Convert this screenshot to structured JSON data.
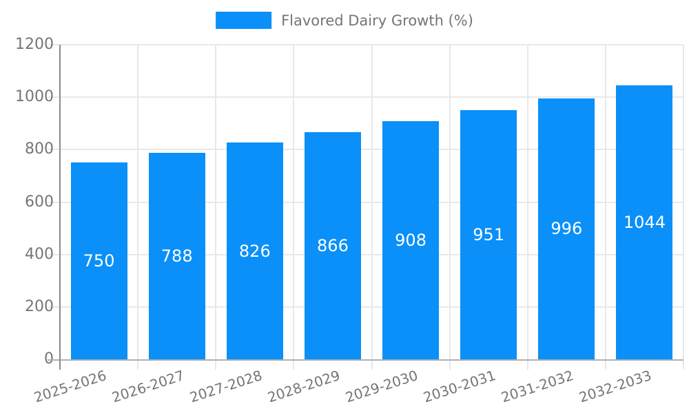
{
  "legend": {
    "label": "Flavored Dairy Growth (%)"
  },
  "chart_data": {
    "type": "bar",
    "title": "",
    "categories": [
      "2025-2026",
      "2026-2027",
      "2027-2028",
      "2028-2029",
      "2029-2030",
      "2030-2031",
      "2031-2032",
      "2032-2033"
    ],
    "series": [
      {
        "name": "Flavored Dairy Growth (%)",
        "values": [
          750,
          788,
          826,
          866,
          908,
          951,
          996,
          1044
        ]
      }
    ],
    "value_labels": [
      750,
      788,
      826,
      866,
      908,
      951,
      996,
      1044
    ],
    "xlabel": "",
    "ylabel": "",
    "ylim": [
      0,
      1200
    ],
    "yticks": [
      0,
      200,
      400,
      600,
      800,
      1000,
      1200
    ],
    "grid": true,
    "legend_position": "top-center",
    "x_label_rotation_deg": -18,
    "colors": {
      "bar": "#0A90F8",
      "value_label": "#FFFFFF",
      "grid": "#E8E8E8",
      "x_axis": "#B0B0B0",
      "y_axis": "#8A8A8A",
      "tick_text": "#757575"
    }
  }
}
